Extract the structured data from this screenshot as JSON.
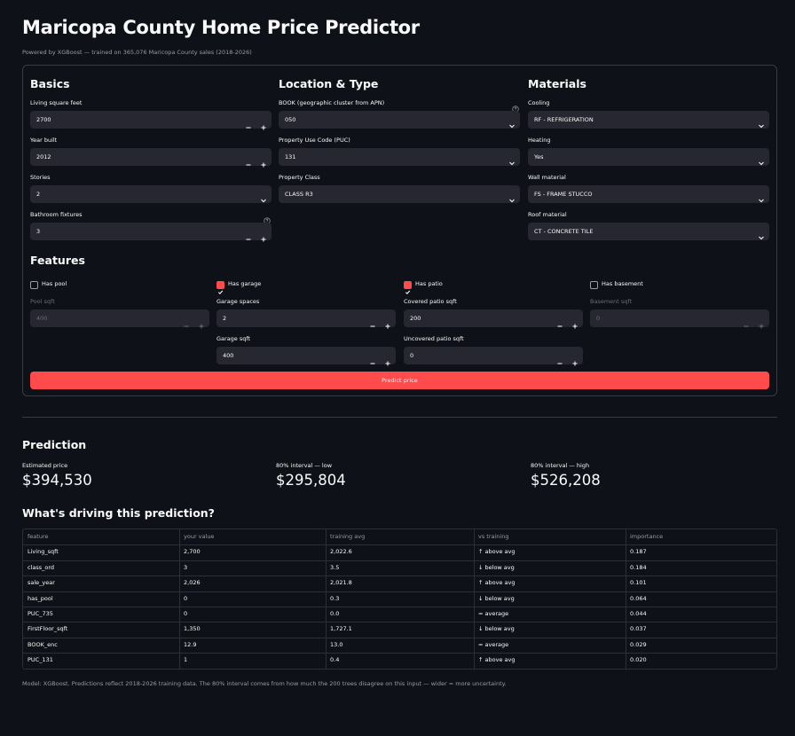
{
  "header": {
    "title": "Maricopa County Home Price Predictor",
    "subtitle": "Powered by XGBoost — trained on 365,076 Maricopa County sales (2018-2026)"
  },
  "form": {
    "sections": [
      {
        "title": "Basics",
        "fields": [
          {
            "label": "Living square feet",
            "value": "2700",
            "kind": "number"
          },
          {
            "label": "Year built",
            "value": "2012",
            "kind": "number"
          },
          {
            "label": "Stories",
            "value": "2",
            "kind": "select"
          },
          {
            "label": "Bathroom fixtures",
            "value": "3",
            "kind": "number",
            "help": true
          }
        ]
      },
      {
        "title": "Location & Type",
        "fields": [
          {
            "label": "BOOK (geographic cluster from APN)",
            "value": "050",
            "kind": "select",
            "help": true
          },
          {
            "label": "Property Use Code (PUC)",
            "value": "131",
            "kind": "select"
          },
          {
            "label": "Property Class",
            "value": "CLASS R3",
            "kind": "select"
          }
        ]
      },
      {
        "title": "Materials",
        "fields": [
          {
            "label": "Cooling",
            "value": "RF - REFRIGERATION",
            "kind": "select"
          },
          {
            "label": "Heating",
            "value": "Yes",
            "kind": "select"
          },
          {
            "label": "Wall material",
            "value": "FS - FRAME STUCCO",
            "kind": "select"
          },
          {
            "label": "Roof material",
            "value": "CT - CONCRETE TILE",
            "kind": "select"
          }
        ]
      }
    ],
    "features": {
      "title": "Features",
      "columns": [
        {
          "checkbox": {
            "label": "Has pool",
            "checked": false
          },
          "fields": [
            {
              "label": "Pool sqft",
              "value": "400",
              "kind": "number",
              "disabled": true
            }
          ]
        },
        {
          "checkbox": {
            "label": "Has garage",
            "checked": true
          },
          "fields": [
            {
              "label": "Garage spaces",
              "value": "2",
              "kind": "number"
            },
            {
              "label": "Garage sqft",
              "value": "400",
              "kind": "number"
            }
          ]
        },
        {
          "checkbox": {
            "label": "Has patio",
            "checked": true
          },
          "fields": [
            {
              "label": "Covered patio sqft",
              "value": "200",
              "kind": "number"
            },
            {
              "label": "Uncovered patio sqft",
              "value": "0",
              "kind": "number"
            }
          ]
        },
        {
          "checkbox": {
            "label": "Has basement",
            "checked": false
          },
          "fields": [
            {
              "label": "Basement sqft",
              "value": "0",
              "kind": "number",
              "disabled": true
            }
          ]
        }
      ]
    },
    "button": "Predict price"
  },
  "prediction": {
    "title": "Prediction",
    "metrics": [
      {
        "label": "Estimated price",
        "value": "$394,530"
      },
      {
        "label": "80% interval — low",
        "value": "$295,804"
      },
      {
        "label": "80% interval — high",
        "value": "$526,208"
      }
    ]
  },
  "drivers": {
    "title": "What's driving this prediction?",
    "columns": [
      "feature",
      "your value",
      "training avg",
      "vs training",
      "importance"
    ],
    "rows": [
      [
        "Living_sqft",
        "2,700",
        "2,022.6",
        "↑ above avg",
        "0.187"
      ],
      [
        "class_ord",
        "3",
        "3.5",
        "↓ below avg",
        "0.184"
      ],
      [
        "sale_year",
        "2,026",
        "2,021.8",
        "↑ above avg",
        "0.101"
      ],
      [
        "has_pool",
        "0",
        "0.3",
        "↓ below avg",
        "0.064"
      ],
      [
        "PUC_735",
        "0",
        "0.0",
        "= average",
        "0.044"
      ],
      [
        "FirstFloor_sqft",
        "1,350",
        "1,727.1",
        "↓ below avg",
        "0.037"
      ],
      [
        "BOOK_enc",
        "12.9",
        "13.0",
        "= average",
        "0.029"
      ],
      [
        "PUC_131",
        "1",
        "0.4",
        "↑ above avg",
        "0.020"
      ]
    ]
  },
  "footer": "Model: XGBoost. Predictions reflect 2018-2026 training data. The 80% interval comes from how much the 200 trees disagree on this input — wider = more uncertainty."
}
